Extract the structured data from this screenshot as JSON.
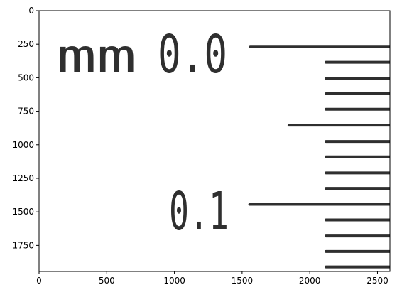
{
  "chart_data": {
    "type": "image",
    "title": "",
    "xlabel": "",
    "ylabel": "",
    "xlim": [
      0,
      2592
    ],
    "ylim": [
      1944,
      0
    ],
    "x_ticks": [
      0,
      500,
      1000,
      1500,
      2000,
      2500
    ],
    "y_ticks": [
      0,
      250,
      500,
      750,
      1000,
      1250,
      1500,
      1750
    ],
    "grid": false,
    "image_content": {
      "description_texts": {
        "unit": "mm",
        "label_top": "0.0",
        "label_bottom": "0.1"
      },
      "colors": {
        "ink": "#2f2f2f",
        "background": "#ffffff"
      },
      "scale_marks": [
        {
          "y": 270,
          "x_start": 1560,
          "x_end": 2592,
          "kind": "major"
        },
        {
          "y": 385,
          "x_start": 2120,
          "x_end": 2592,
          "kind": "minor"
        },
        {
          "y": 505,
          "x_start": 2120,
          "x_end": 2592,
          "kind": "minor"
        },
        {
          "y": 620,
          "x_start": 2120,
          "x_end": 2592,
          "kind": "minor"
        },
        {
          "y": 735,
          "x_start": 2120,
          "x_end": 2592,
          "kind": "minor"
        },
        {
          "y": 855,
          "x_start": 1845,
          "x_end": 2592,
          "kind": "medium"
        },
        {
          "y": 975,
          "x_start": 2120,
          "x_end": 2592,
          "kind": "minor"
        },
        {
          "y": 1090,
          "x_start": 2120,
          "x_end": 2592,
          "kind": "minor"
        },
        {
          "y": 1210,
          "x_start": 2120,
          "x_end": 2592,
          "kind": "minor"
        },
        {
          "y": 1325,
          "x_start": 2120,
          "x_end": 2592,
          "kind": "minor"
        },
        {
          "y": 1445,
          "x_start": 1555,
          "x_end": 2592,
          "kind": "major"
        },
        {
          "y": 1560,
          "x_start": 2120,
          "x_end": 2592,
          "kind": "minor"
        },
        {
          "y": 1680,
          "x_start": 2120,
          "x_end": 2592,
          "kind": "minor"
        },
        {
          "y": 1795,
          "x_start": 2120,
          "x_end": 2592,
          "kind": "minor"
        },
        {
          "y": 1910,
          "x_start": 2120,
          "x_end": 2592,
          "kind": "minor"
        }
      ]
    }
  }
}
